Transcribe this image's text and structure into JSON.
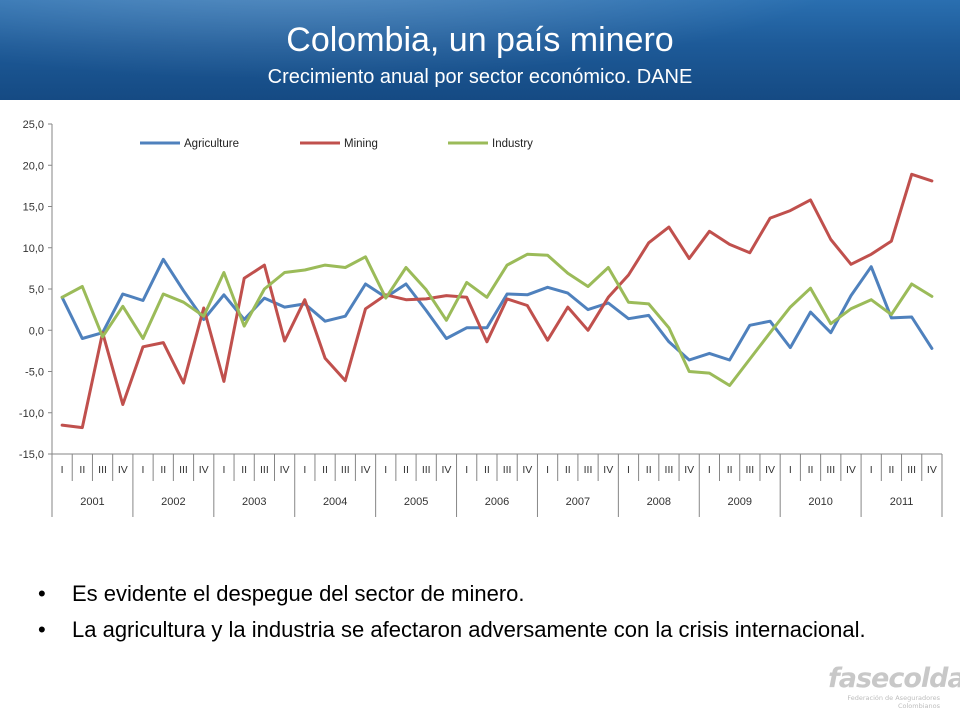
{
  "header": {
    "title": "Colombia, un país minero",
    "subtitle": "Crecimiento anual por sector económico. DANE"
  },
  "chart_data": {
    "type": "line",
    "title": "",
    "xlabel": "",
    "ylabel": "",
    "ylim": [
      -15,
      25
    ],
    "yticks": [
      "25,0",
      "20,0",
      "15,0",
      "10,0",
      "5,0",
      "0,0",
      "-5,0",
      "-10,0",
      "-15,0"
    ],
    "ytick_values": [
      25,
      20,
      15,
      10,
      5,
      0,
      -5,
      -10,
      -15
    ],
    "years": [
      "2001",
      "2002",
      "2003",
      "2004",
      "2005",
      "2006",
      "2007",
      "2008",
      "2009",
      "2010",
      "2011"
    ],
    "quarters": [
      "I",
      "II",
      "III",
      "IV"
    ],
    "legend_position": "top",
    "grid": false,
    "series": [
      {
        "name": "Agriculture",
        "color": "#4f81bd",
        "values": [
          4.0,
          -1.0,
          -0.3,
          4.4,
          3.6,
          8.6,
          4.8,
          1.3,
          4.3,
          1.3,
          3.9,
          2.8,
          3.2,
          1.1,
          1.7,
          5.6,
          4.0,
          5.6,
          2.4,
          -1.0,
          0.3,
          0.3,
          4.4,
          4.3,
          5.2,
          4.5,
          2.5,
          3.3,
          1.4,
          1.8,
          -1.4,
          -3.6,
          -2.8,
          -3.6,
          0.6,
          1.1,
          -2.1,
          2.2,
          -0.3,
          4.2,
          7.7,
          1.5,
          1.6,
          -2.2
        ]
      },
      {
        "name": "Mining",
        "color": "#c0504d",
        "values": [
          -11.5,
          -11.8,
          -0.3,
          -9.0,
          -2.0,
          -1.5,
          -6.4,
          2.7,
          -6.2,
          6.3,
          7.9,
          -1.3,
          3.7,
          -3.4,
          -6.1,
          2.6,
          4.3,
          3.7,
          3.8,
          4.2,
          4.0,
          -1.4,
          3.8,
          3.0,
          -1.2,
          2.8,
          0.0,
          4.0,
          6.7,
          10.6,
          12.5,
          8.7,
          12.0,
          10.4,
          9.4,
          13.6,
          14.5,
          15.8,
          11.0,
          8.0,
          9.2,
          10.8,
          18.9,
          18.1
        ]
      },
      {
        "name": "Industry",
        "color": "#9bbb59",
        "values": [
          4.0,
          5.3,
          -0.8,
          2.9,
          -1.0,
          4.4,
          3.4,
          1.7,
          7.0,
          0.5,
          5.0,
          7.0,
          7.3,
          7.9,
          7.6,
          8.9,
          3.9,
          7.6,
          4.9,
          1.2,
          5.8,
          4.0,
          7.9,
          9.2,
          9.1,
          6.9,
          5.3,
          7.6,
          3.4,
          3.2,
          0.3,
          -5.0,
          -5.2,
          -6.7,
          -3.5,
          -0.3,
          2.8,
          5.1,
          0.8,
          2.6,
          3.7,
          1.9,
          5.6,
          4.1
        ]
      }
    ]
  },
  "bullets": [
    "Es evidente el despegue del sector de minero.",
    "La agricultura y la industria se afectaron adversamente con la crisis internacional."
  ],
  "bullet_symbol": "•",
  "logo": {
    "wordmark": "fasecolda",
    "tagline": "Federación de Aseguradores Colombianos"
  }
}
